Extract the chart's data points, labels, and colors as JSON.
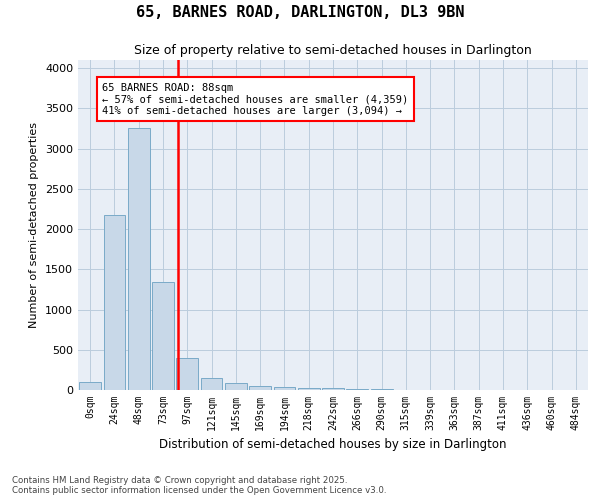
{
  "title_line1": "65, BARNES ROAD, DARLINGTON, DL3 9BN",
  "title_line2": "Size of property relative to semi-detached houses in Darlington",
  "xlabel": "Distribution of semi-detached houses by size in Darlington",
  "ylabel": "Number of semi-detached properties",
  "categories": [
    "0sqm",
    "24sqm",
    "48sqm",
    "73sqm",
    "97sqm",
    "121sqm",
    "145sqm",
    "169sqm",
    "194sqm",
    "218sqm",
    "242sqm",
    "266sqm",
    "290sqm",
    "315sqm",
    "339sqm",
    "363sqm",
    "387sqm",
    "411sqm",
    "436sqm",
    "460sqm",
    "484sqm"
  ],
  "bar_values": [
    100,
    2170,
    3260,
    1340,
    400,
    155,
    90,
    45,
    40,
    30,
    20,
    15,
    10,
    5,
    3,
    2,
    1,
    1,
    0,
    0,
    0
  ],
  "bar_color": "#c8d8e8",
  "bar_edge_color": "#7aaac8",
  "vline_color": "red",
  "vline_pos": 3.63,
  "annotation_title": "65 BARNES ROAD: 88sqm",
  "annotation_line1": "← 57% of semi-detached houses are smaller (4,359)",
  "annotation_line2": "41% of semi-detached houses are larger (3,094) →",
  "annotation_box_color": "red",
  "ylim": [
    0,
    4100
  ],
  "yticks": [
    0,
    500,
    1000,
    1500,
    2000,
    2500,
    3000,
    3500,
    4000
  ],
  "grid_color": "#bbccdd",
  "bg_color": "#e8eef6",
  "footer_line1": "Contains HM Land Registry data © Crown copyright and database right 2025.",
  "footer_line2": "Contains public sector information licensed under the Open Government Licence v3.0."
}
